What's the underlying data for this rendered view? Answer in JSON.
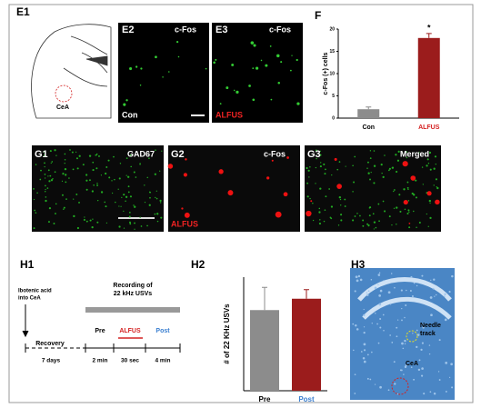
{
  "panels": {
    "E1": {
      "label": "E1",
      "region": "CeA"
    },
    "E2": {
      "label": "E2",
      "stain": "c-Fos",
      "condition": "Con"
    },
    "E3": {
      "label": "E3",
      "stain": "c-Fos",
      "condition": "ALFUS"
    },
    "G1": {
      "label": "G1",
      "stain": "GAD67"
    },
    "G2": {
      "label": "G2",
      "stain": "c-Fos",
      "condition": "ALFUS"
    },
    "G3": {
      "label": "G3",
      "stain": "Merged"
    },
    "H1": {
      "label": "H1",
      "injection": [
        "Ibotenic acid",
        "into CeA"
      ],
      "recording": [
        "Recording of",
        "22 kHz USVs"
      ],
      "phases": [
        "Recovery",
        "Pre",
        "ALFUS",
        "Post"
      ],
      "durations": [
        "7 days",
        "2 min",
        "30 sec",
        "4 min"
      ]
    },
    "H3": {
      "label": "H3",
      "needle": [
        "Needle",
        "track"
      ],
      "region": "CeA"
    }
  },
  "chart_data": [
    {
      "type": "bar",
      "label": "F",
      "ylabel": "c-Fos (+) cells",
      "categories": [
        "Con",
        "ALFUS"
      ],
      "values": [
        2,
        18
      ],
      "errors": [
        0.5,
        1
      ],
      "colors": [
        "#8c8c8c",
        "#9b1c1c"
      ],
      "category_colors": [
        "#000000",
        "#d42020"
      ],
      "annotation": "*",
      "ylim": [
        0,
        20
      ],
      "yticks": [
        0,
        5,
        10,
        15,
        20
      ]
    },
    {
      "type": "bar",
      "label": "H2",
      "ylabel": "# of 22 KHz USVs",
      "categories": [
        "Pre",
        "Post"
      ],
      "values": [
        7.1,
        8.1
      ],
      "errors": [
        2,
        0.8
      ],
      "colors": [
        "#8c8c8c",
        "#9b1c1c"
      ],
      "category_colors": [
        "#000000",
        "#3a7fd0"
      ],
      "ylim": [
        0,
        10
      ]
    }
  ]
}
